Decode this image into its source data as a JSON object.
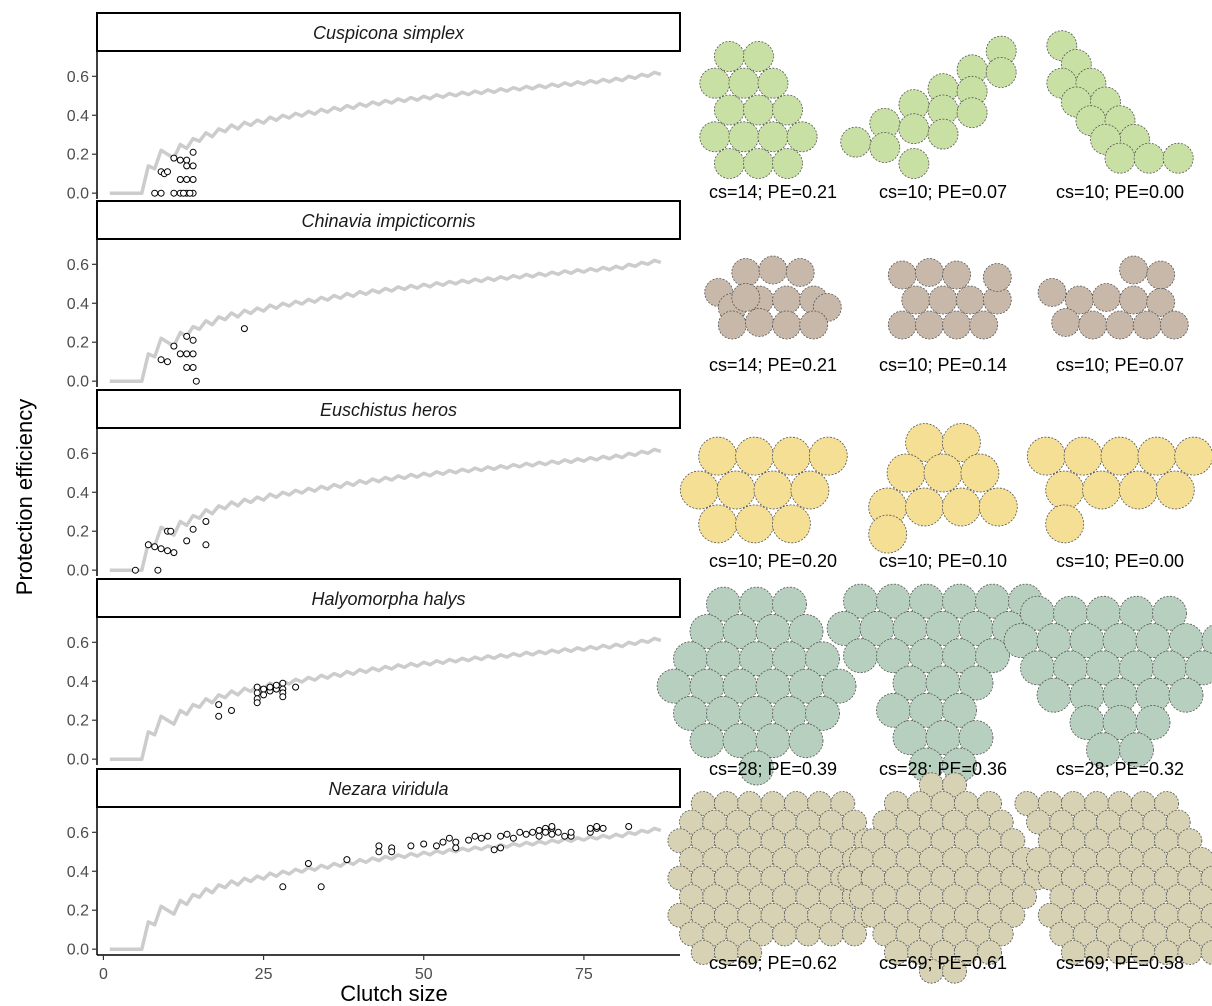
{
  "chart_data": {
    "type": "scatter",
    "xlabel": "Clutch size",
    "ylabel": "Protection efficiency",
    "xlim": [
      -1,
      90
    ],
    "ylim": [
      -0.03,
      0.73
    ],
    "x_ticks": [
      0,
      25,
      50,
      75
    ],
    "y_ticks": [
      0.0,
      0.2,
      0.4,
      0.6
    ],
    "y_tick_labels": [
      "0.0",
      "0.2",
      "0.4",
      "0.6"
    ],
    "grid": false,
    "line_color": "#cccccc",
    "point_stroke": "#000000",
    "reference_curve": {
      "x": [
        1,
        2,
        3,
        4,
        5,
        6,
        7,
        8,
        9,
        10,
        11,
        12,
        13,
        14,
        15,
        16,
        17,
        18,
        19,
        20,
        21,
        22,
        23,
        24,
        25,
        26,
        27,
        28,
        29,
        30,
        31,
        32,
        33,
        34,
        35,
        36,
        37,
        38,
        39,
        40,
        41,
        42,
        43,
        44,
        45,
        46,
        47,
        48,
        49,
        50,
        51,
        52,
        53,
        54,
        55,
        56,
        57,
        58,
        59,
        60,
        61,
        62,
        63,
        64,
        65,
        66,
        67,
        68,
        69,
        70,
        71,
        72,
        73,
        74,
        75,
        76,
        77,
        78,
        79,
        80,
        81,
        82,
        83,
        84,
        85,
        86,
        87
      ],
      "y": [
        0,
        0,
        0,
        0,
        0,
        0,
        0.14,
        0.125,
        0.22,
        0.2,
        0.18,
        0.25,
        0.23,
        0.28,
        0.267,
        0.31,
        0.29,
        0.33,
        0.316,
        0.35,
        0.33,
        0.364,
        0.348,
        0.375,
        0.36,
        0.39,
        0.374,
        0.4,
        0.386,
        0.41,
        0.396,
        0.42,
        0.406,
        0.43,
        0.416,
        0.44,
        0.426,
        0.45,
        0.436,
        0.46,
        0.446,
        0.468,
        0.455,
        0.476,
        0.463,
        0.484,
        0.471,
        0.491,
        0.478,
        0.498,
        0.485,
        0.505,
        0.492,
        0.512,
        0.5,
        0.518,
        0.506,
        0.524,
        0.512,
        0.53,
        0.518,
        0.536,
        0.524,
        0.542,
        0.53,
        0.548,
        0.536,
        0.554,
        0.542,
        0.56,
        0.548,
        0.566,
        0.554,
        0.572,
        0.56,
        0.578,
        0.566,
        0.584,
        0.572,
        0.59,
        0.578,
        0.6,
        0.59,
        0.61,
        0.6,
        0.62,
        0.61
      ]
    },
    "panels": [
      {
        "species": "Cuspicona simplex",
        "points": [
          [
            8,
            0
          ],
          [
            9,
            0
          ],
          [
            9,
            0.11
          ],
          [
            9.5,
            0.1
          ],
          [
            10,
            0.11
          ],
          [
            11,
            0.18
          ],
          [
            11,
            0
          ],
          [
            12,
            0.17
          ],
          [
            12,
            0.07
          ],
          [
            12,
            0
          ],
          [
            13,
            0.17
          ],
          [
            13,
            0.14
          ],
          [
            13,
            0.07
          ],
          [
            13,
            0
          ],
          [
            14,
            0.21
          ],
          [
            14,
            0.14
          ],
          [
            14,
            0.07
          ],
          [
            14,
            0
          ],
          [
            13.5,
            0
          ],
          [
            12.5,
            0
          ]
        ],
        "fill": "#c9e0a4",
        "clutch_examples": [
          {
            "label": "cs=14; PE=0.21"
          },
          {
            "label": "cs=10; PE=0.07"
          },
          {
            "label": "cs=10; PE=0.00"
          }
        ]
      },
      {
        "species": "Chinavia impicticornis",
        "points": [
          [
            9,
            0.11
          ],
          [
            10,
            0.1
          ],
          [
            11,
            0.18
          ],
          [
            12,
            0.14
          ],
          [
            13,
            0.23
          ],
          [
            13,
            0.14
          ],
          [
            13,
            0.07
          ],
          [
            14,
            0.21
          ],
          [
            14,
            0.14
          ],
          [
            14,
            0.07
          ],
          [
            14.5,
            0
          ],
          [
            22,
            0.27
          ]
        ],
        "fill": "#c8b8a9",
        "clutch_examples": [
          {
            "label": "cs=14; PE=0.21"
          },
          {
            "label": "cs=10; PE=0.14"
          },
          {
            "label": "cs=10; PE=0.07"
          }
        ]
      },
      {
        "species": "Euschistus heros",
        "points": [
          [
            5,
            0
          ],
          [
            7,
            0.13
          ],
          [
            8,
            0.12
          ],
          [
            8.5,
            0
          ],
          [
            9,
            0.11
          ],
          [
            10,
            0.2
          ],
          [
            10.5,
            0.2
          ],
          [
            10,
            0.1
          ],
          [
            11,
            0.09
          ],
          [
            13,
            0.15
          ],
          [
            14,
            0.21
          ],
          [
            16,
            0.25
          ],
          [
            16,
            0.13
          ]
        ],
        "fill": "#f4df94",
        "clutch_examples": [
          {
            "label": "cs=10; PE=0.20"
          },
          {
            "label": "cs=10; PE=0.10"
          },
          {
            "label": "cs=10; PE=0.00"
          }
        ]
      },
      {
        "species": "Halyomorpha halys",
        "points": [
          [
            18,
            0.28
          ],
          [
            18,
            0.22
          ],
          [
            20,
            0.25
          ],
          [
            24,
            0.37
          ],
          [
            24,
            0.34
          ],
          [
            24,
            0.31
          ],
          [
            24,
            0.29
          ],
          [
            25,
            0.36
          ],
          [
            25,
            0.33
          ],
          [
            26,
            0.35
          ],
          [
            26,
            0.37
          ],
          [
            27,
            0.36
          ],
          [
            27,
            0.38
          ],
          [
            28,
            0.39
          ],
          [
            28,
            0.36
          ],
          [
            28,
            0.34
          ],
          [
            28,
            0.32
          ],
          [
            30,
            0.37
          ]
        ],
        "fill": "#b7cfbf",
        "clutch_examples": [
          {
            "label": "cs=28; PE=0.39"
          },
          {
            "label": "cs=28; PE=0.36"
          },
          {
            "label": "cs=28; PE=0.32"
          }
        ]
      },
      {
        "species": "Nezara viridula",
        "points": [
          [
            28,
            0.32
          ],
          [
            32,
            0.44
          ],
          [
            34,
            0.32
          ],
          [
            38,
            0.46
          ],
          [
            43,
            0.53
          ],
          [
            43,
            0.5
          ],
          [
            45,
            0.52
          ],
          [
            45,
            0.5
          ],
          [
            48,
            0.53
          ],
          [
            50,
            0.54
          ],
          [
            52,
            0.53
          ],
          [
            53,
            0.55
          ],
          [
            54,
            0.57
          ],
          [
            55,
            0.55
          ],
          [
            55,
            0.52
          ],
          [
            57,
            0.56
          ],
          [
            58,
            0.58
          ],
          [
            59,
            0.57
          ],
          [
            60,
            0.58
          ],
          [
            61,
            0.51
          ],
          [
            62,
            0.52
          ],
          [
            62,
            0.58
          ],
          [
            63,
            0.59
          ],
          [
            64,
            0.57
          ],
          [
            65,
            0.6
          ],
          [
            66,
            0.59
          ],
          [
            67,
            0.6
          ],
          [
            68,
            0.61
          ],
          [
            68,
            0.58
          ],
          [
            69,
            0.62
          ],
          [
            69,
            0.6
          ],
          [
            70,
            0.62
          ],
          [
            70,
            0.63
          ],
          [
            70,
            0.59
          ],
          [
            71,
            0.6
          ],
          [
            72,
            0.58
          ],
          [
            73,
            0.58
          ],
          [
            73,
            0.6
          ],
          [
            76,
            0.6
          ],
          [
            76,
            0.62
          ],
          [
            77,
            0.62
          ],
          [
            77,
            0.63
          ],
          [
            78,
            0.62
          ],
          [
            82,
            0.63
          ]
        ],
        "fill": "#d7d2b4",
        "clutch_examples": [
          {
            "label": "cs=69; PE=0.62"
          },
          {
            "label": "cs=69; PE=0.61"
          },
          {
            "label": "cs=69; PE=0.58"
          }
        ]
      }
    ]
  }
}
